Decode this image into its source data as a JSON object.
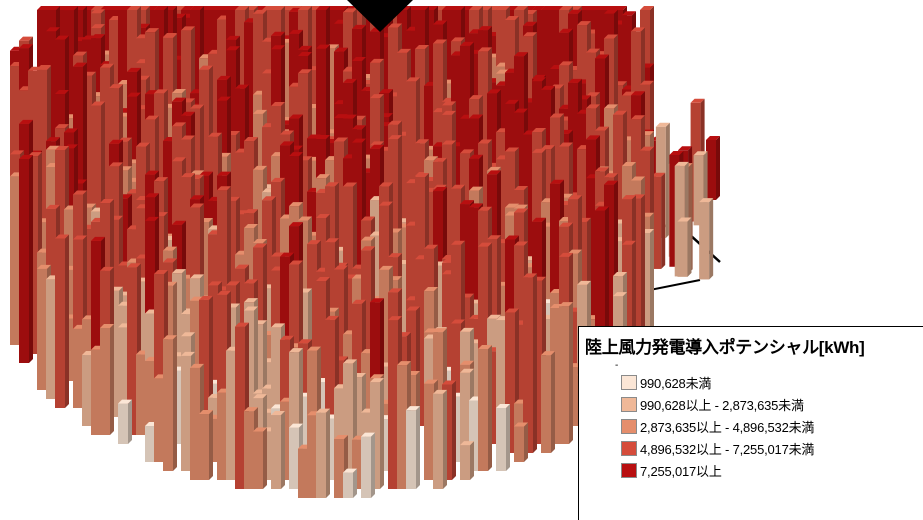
{
  "map": {
    "colors": {
      "outline": "#000000",
      "background": "#ffffff"
    }
  },
  "legend": {
    "title": "陸上風力発電導入ポテンシャル[kWh]",
    "subtitle": "-",
    "classes": [
      {
        "label": "990,628未満",
        "color": "#fbe6d6"
      },
      {
        "label": "990,628以上 - 2,873,635未満",
        "color": "#efb898"
      },
      {
        "label": "2,873,635以上 - 4,896,532未満",
        "color": "#e58e6c"
      },
      {
        "label": "4,896,532以上 - 7,255,017未満",
        "color": "#d54c3b"
      },
      {
        "label": "7,255,017以上",
        "color": "#b80f10"
      }
    ]
  }
}
